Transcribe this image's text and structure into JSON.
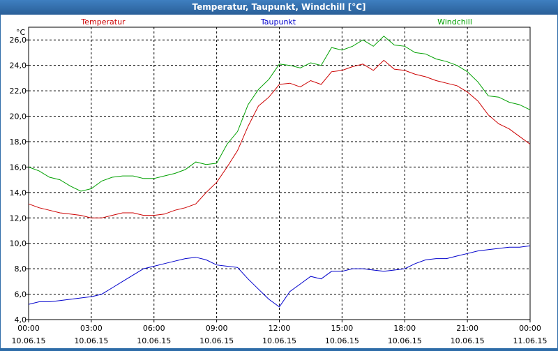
{
  "window": {
    "title": "Temperatur, Taupunkt, Windchill [°C]"
  },
  "colors": {
    "temperatur": "#cc0000",
    "taupunkt": "#0000cc",
    "windchill": "#00a000",
    "grid": "#000000",
    "titlebar": "#2e6ca8"
  },
  "chart_data": {
    "type": "line",
    "title": "",
    "xlabel": "",
    "ylabel": "°C",
    "ylim": [
      4.0,
      27.0
    ],
    "xlim": [
      "10.06.15 00:00",
      "11.06.15 00:00"
    ],
    "grid": true,
    "legend_placement": "top",
    "yticks": [
      "4,0",
      "6,0",
      "8,0",
      "10,0",
      "12,0",
      "14,0",
      "16,0",
      "18,0",
      "20,0",
      "22,0",
      "24,0",
      "26,0"
    ],
    "xticks": [
      {
        "time": "00:00",
        "date": "10.06.15"
      },
      {
        "time": "03:00",
        "date": "10.06.15"
      },
      {
        "time": "06:00",
        "date": "10.06.15"
      },
      {
        "time": "09:00",
        "date": "10.06.15"
      },
      {
        "time": "12:00",
        "date": "10.06.15"
      },
      {
        "time": "15:00",
        "date": "10.06.15"
      },
      {
        "time": "18:00",
        "date": "10.06.15"
      },
      {
        "time": "21:00",
        "date": "10.06.15"
      },
      {
        "time": "00:00",
        "date": "11.06.15"
      }
    ],
    "series": [
      {
        "name": "Temperatur",
        "points": [
          [
            "10.06.15 00:00",
            13.1
          ],
          [
            "10.06.15 00:30",
            12.8
          ],
          [
            "10.06.15 01:00",
            12.6
          ],
          [
            "10.06.15 01:30",
            12.4
          ],
          [
            "10.06.15 02:00",
            12.3
          ],
          [
            "10.06.15 02:30",
            12.2
          ],
          [
            "10.06.15 03:00",
            12.0
          ],
          [
            "10.06.15 03:30",
            12.0
          ],
          [
            "10.06.15 04:00",
            12.2
          ],
          [
            "10.06.15 04:30",
            12.4
          ],
          [
            "10.06.15 05:00",
            12.4
          ],
          [
            "10.06.15 05:30",
            12.2
          ],
          [
            "10.06.15 06:00",
            12.2
          ],
          [
            "10.06.15 06:30",
            12.3
          ],
          [
            "10.06.15 07:00",
            12.6
          ],
          [
            "10.06.15 07:30",
            12.8
          ],
          [
            "10.06.15 08:00",
            13.1
          ],
          [
            "10.06.15 08:30",
            14.0
          ],
          [
            "10.06.15 09:00",
            14.8
          ],
          [
            "10.06.15 09:30",
            16.0
          ],
          [
            "10.06.15 10:00",
            17.3
          ],
          [
            "10.06.15 10:30",
            19.2
          ],
          [
            "10.06.15 11:00",
            20.8
          ],
          [
            "10.06.15 11:30",
            21.5
          ],
          [
            "10.06.15 12:00",
            22.5
          ],
          [
            "10.06.15 12:30",
            22.6
          ],
          [
            "10.06.15 13:00",
            22.3
          ],
          [
            "10.06.15 13:30",
            22.8
          ],
          [
            "10.06.15 14:00",
            22.5
          ],
          [
            "10.06.15 14:30",
            23.5
          ],
          [
            "10.06.15 15:00",
            23.6
          ],
          [
            "10.06.15 15:30",
            23.9
          ],
          [
            "10.06.15 16:00",
            24.1
          ],
          [
            "10.06.15 16:30",
            23.6
          ],
          [
            "10.06.15 17:00",
            24.4
          ],
          [
            "10.06.15 17:30",
            23.7
          ],
          [
            "10.06.15 18:00",
            23.6
          ],
          [
            "10.06.15 18:30",
            23.3
          ],
          [
            "10.06.15 19:00",
            23.1
          ],
          [
            "10.06.15 19:30",
            22.8
          ],
          [
            "10.06.15 20:00",
            22.6
          ],
          [
            "10.06.15 20:30",
            22.4
          ],
          [
            "10.06.15 21:00",
            21.9
          ],
          [
            "10.06.15 21:30",
            21.2
          ],
          [
            "10.06.15 22:00",
            20.1
          ],
          [
            "10.06.15 22:30",
            19.4
          ],
          [
            "10.06.15 23:00",
            19.0
          ],
          [
            "10.06.15 23:30",
            18.4
          ],
          [
            "11.06.15 00:00",
            17.8
          ]
        ]
      },
      {
        "name": "Taupunkt",
        "points": [
          [
            "10.06.15 00:00",
            5.2
          ],
          [
            "10.06.15 00:30",
            5.4
          ],
          [
            "10.06.15 01:00",
            5.4
          ],
          [
            "10.06.15 01:30",
            5.5
          ],
          [
            "10.06.15 02:00",
            5.6
          ],
          [
            "10.06.15 02:30",
            5.7
          ],
          [
            "10.06.15 03:00",
            5.8
          ],
          [
            "10.06.15 03:30",
            6.0
          ],
          [
            "10.06.15 04:00",
            6.5
          ],
          [
            "10.06.15 04:30",
            7.0
          ],
          [
            "10.06.15 05:00",
            7.5
          ],
          [
            "10.06.15 05:30",
            8.0
          ],
          [
            "10.06.15 06:00",
            8.2
          ],
          [
            "10.06.15 06:30",
            8.4
          ],
          [
            "10.06.15 07:00",
            8.6
          ],
          [
            "10.06.15 07:30",
            8.8
          ],
          [
            "10.06.15 08:00",
            8.9
          ],
          [
            "10.06.15 08:30",
            8.7
          ],
          [
            "10.06.15 09:00",
            8.3
          ],
          [
            "10.06.15 09:30",
            8.2
          ],
          [
            "10.06.15 10:00",
            8.1
          ],
          [
            "10.06.15 10:30",
            7.2
          ],
          [
            "10.06.15 11:00",
            6.4
          ],
          [
            "10.06.15 11:30",
            5.6
          ],
          [
            "10.06.15 12:00",
            5.0
          ],
          [
            "10.06.15 12:30",
            6.2
          ],
          [
            "10.06.15 13:00",
            6.8
          ],
          [
            "10.06.15 13:30",
            7.4
          ],
          [
            "10.06.15 14:00",
            7.2
          ],
          [
            "10.06.15 14:30",
            7.8
          ],
          [
            "10.06.15 15:00",
            7.8
          ],
          [
            "10.06.15 15:30",
            8.0
          ],
          [
            "10.06.15 16:00",
            8.0
          ],
          [
            "10.06.15 16:30",
            7.9
          ],
          [
            "10.06.15 17:00",
            7.8
          ],
          [
            "10.06.15 17:30",
            7.9
          ],
          [
            "10.06.15 18:00",
            8.0
          ],
          [
            "10.06.15 18:30",
            8.4
          ],
          [
            "10.06.15 19:00",
            8.7
          ],
          [
            "10.06.15 19:30",
            8.8
          ],
          [
            "10.06.15 20:00",
            8.8
          ],
          [
            "10.06.15 20:30",
            9.0
          ],
          [
            "10.06.15 21:00",
            9.2
          ],
          [
            "10.06.15 21:30",
            9.4
          ],
          [
            "10.06.15 22:00",
            9.5
          ],
          [
            "10.06.15 22:30",
            9.6
          ],
          [
            "10.06.15 23:00",
            9.7
          ],
          [
            "10.06.15 23:30",
            9.7
          ],
          [
            "11.06.15 00:00",
            9.8
          ]
        ]
      },
      {
        "name": "Windchill",
        "points": [
          [
            "10.06.15 00:00",
            16.0
          ],
          [
            "10.06.15 00:30",
            15.7
          ],
          [
            "10.06.15 01:00",
            15.2
          ],
          [
            "10.06.15 01:30",
            15.0
          ],
          [
            "10.06.15 02:00",
            14.5
          ],
          [
            "10.06.15 02:30",
            14.1
          ],
          [
            "10.06.15 03:00",
            14.3
          ],
          [
            "10.06.15 03:30",
            14.9
          ],
          [
            "10.06.15 04:00",
            15.2
          ],
          [
            "10.06.15 04:30",
            15.3
          ],
          [
            "10.06.15 05:00",
            15.3
          ],
          [
            "10.06.15 05:30",
            15.1
          ],
          [
            "10.06.15 06:00",
            15.1
          ],
          [
            "10.06.15 06:30",
            15.3
          ],
          [
            "10.06.15 07:00",
            15.5
          ],
          [
            "10.06.15 07:30",
            15.8
          ],
          [
            "10.06.15 08:00",
            16.4
          ],
          [
            "10.06.15 08:30",
            16.2
          ],
          [
            "10.06.15 09:00",
            16.3
          ],
          [
            "10.06.15 09:30",
            17.8
          ],
          [
            "10.06.15 10:00",
            18.8
          ],
          [
            "10.06.15 10:30",
            20.9
          ],
          [
            "10.06.15 11:00",
            22.1
          ],
          [
            "10.06.15 11:30",
            22.9
          ],
          [
            "10.06.15 12:00",
            24.1
          ],
          [
            "10.06.15 12:30",
            24.0
          ],
          [
            "10.06.15 13:00",
            23.8
          ],
          [
            "10.06.15 13:30",
            24.2
          ],
          [
            "10.06.15 14:00",
            24.0
          ],
          [
            "10.06.15 14:30",
            25.4
          ],
          [
            "10.06.15 15:00",
            25.2
          ],
          [
            "10.06.15 15:30",
            25.5
          ],
          [
            "10.06.15 16:00",
            26.0
          ],
          [
            "10.06.15 16:30",
            25.5
          ],
          [
            "10.06.15 17:00",
            26.3
          ],
          [
            "10.06.15 17:30",
            25.6
          ],
          [
            "10.06.15 18:00",
            25.5
          ],
          [
            "10.06.15 18:30",
            25.0
          ],
          [
            "10.06.15 19:00",
            24.9
          ],
          [
            "10.06.15 19:30",
            24.5
          ],
          [
            "10.06.15 20:00",
            24.3
          ],
          [
            "10.06.15 20:30",
            24.0
          ],
          [
            "10.06.15 21:00",
            23.5
          ],
          [
            "10.06.15 21:30",
            22.7
          ],
          [
            "10.06.15 22:00",
            21.6
          ],
          [
            "10.06.15 22:30",
            21.5
          ],
          [
            "10.06.15 23:00",
            21.1
          ],
          [
            "10.06.15 23:30",
            20.9
          ],
          [
            "11.06.15 00:00",
            20.5
          ]
        ]
      }
    ]
  }
}
